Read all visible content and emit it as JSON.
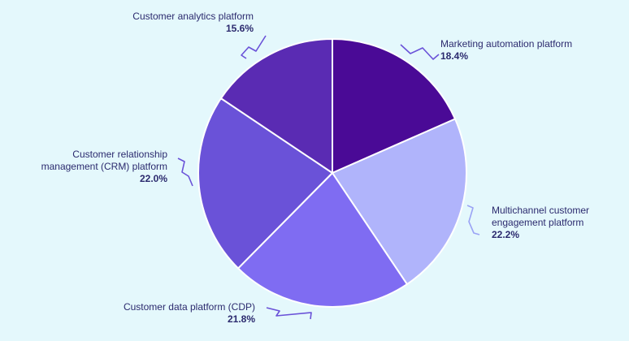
{
  "chart_data": {
    "type": "pie",
    "slices": [
      {
        "name": "Marketing automation platform",
        "value": 18.4,
        "label": "18.4%",
        "color": "#4a0a96",
        "lines": [
          "Marketing automation platform"
        ]
      },
      {
        "name": "Multichannel customer engagement platform",
        "value": 22.2,
        "label": "22.2%",
        "color": "#b0b4fb",
        "lines": [
          "Multichannel customer",
          "engagement platform"
        ]
      },
      {
        "name": "Customer data platform (CDP)",
        "value": 21.8,
        "label": "21.8%",
        "color": "#7f6cf2",
        "lines": [
          "Customer data platform (CDP)"
        ]
      },
      {
        "name": "Customer relationship management (CRM) platform",
        "value": 22.0,
        "label": "22.0%",
        "color": "#6a52d8",
        "lines": [
          "Customer relationship",
          "management (CRM) platform"
        ]
      },
      {
        "name": "Customer analytics platform",
        "value": 15.6,
        "label": "15.6%",
        "color": "#5a2bb3",
        "lines": [
          "Customer analytics platform"
        ]
      }
    ],
    "start_angle": "12 o'clock",
    "direction": "clockwise",
    "leader_line_color": "#6a52d8"
  }
}
